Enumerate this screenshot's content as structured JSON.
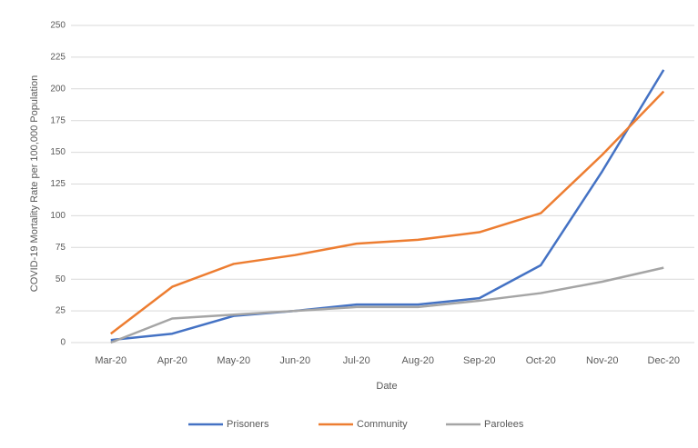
{
  "chart_data": {
    "type": "line",
    "y_label": "COVID-19 Mortality Rate per 100,000 Population",
    "x_label": "Date",
    "categories": [
      "Mar-20",
      "Apr-20",
      "May-20",
      "Jun-20",
      "Jul-20",
      "Aug-20",
      "Sep-20",
      "Oct-20",
      "Nov-20",
      "Dec-20"
    ],
    "series": [
      {
        "name": "Prisoners",
        "color": "#4472c4",
        "values": [
          2,
          7,
          21,
          25,
          30,
          30,
          35,
          61,
          135,
          215
        ]
      },
      {
        "name": "Community",
        "color": "#ed7d31",
        "values": [
          7,
          44,
          62,
          69,
          78,
          81,
          87,
          102,
          148,
          198
        ]
      },
      {
        "name": "Parolees",
        "color": "#a5a5a5",
        "values": [
          0,
          19,
          22,
          25,
          28,
          28,
          33,
          39,
          48,
          59
        ]
      }
    ],
    "ylim": [
      0,
      250
    ],
    "yticks": [
      0,
      25,
      50,
      75,
      100,
      125,
      150,
      175,
      200,
      225,
      250
    ],
    "grid": true,
    "legend": "bottom"
  }
}
